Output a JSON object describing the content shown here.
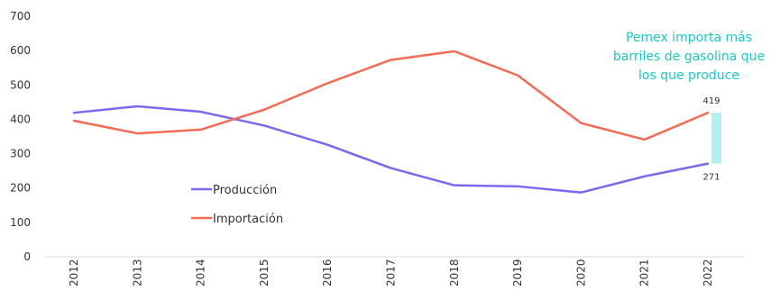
{
  "chart_data": {
    "type": "line",
    "categories": [
      "2012",
      "2013",
      "2014",
      "2015",
      "2016",
      "2017",
      "2018",
      "2019",
      "2020",
      "2021",
      "2022"
    ],
    "series": [
      {
        "name": "Producción",
        "color": "#7B68EE",
        "values": [
          419,
          438,
          422,
          382,
          326,
          258,
          208,
          205,
          187,
          234,
          271
        ]
      },
      {
        "name": "Importación",
        "color": "#F56B55",
        "values": [
          396,
          359,
          370,
          428,
          505,
          573,
          598,
          528,
          389,
          341,
          419
        ]
      }
    ],
    "ylim": [
      0,
      700
    ],
    "yticks": [
      0,
      100,
      200,
      300,
      400,
      500,
      600,
      700
    ],
    "grid": false,
    "legend_position": "center-left",
    "gap_highlight": {
      "category": "2022",
      "from": 271,
      "to": 419,
      "color": "#B2F0F0"
    },
    "data_labels": {
      "top": "419",
      "bottom": "271"
    },
    "annotation": {
      "lines": [
        "Pemex importa más",
        "barriles de gasolina que",
        "los que produce"
      ],
      "color": "#1CC7C7"
    }
  }
}
